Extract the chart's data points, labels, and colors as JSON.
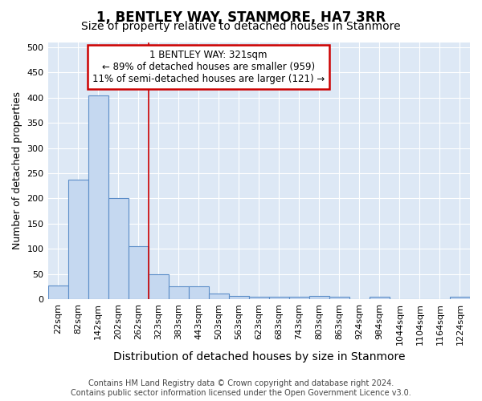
{
  "title": "1, BENTLEY WAY, STANMORE, HA7 3RR",
  "subtitle": "Size of property relative to detached houses in Stanmore",
  "xlabel": "Distribution of detached houses by size in Stanmore",
  "ylabel": "Number of detached properties",
  "categories": [
    "22sqm",
    "82sqm",
    "142sqm",
    "202sqm",
    "262sqm",
    "323sqm",
    "383sqm",
    "443sqm",
    "503sqm",
    "563sqm",
    "623sqm",
    "683sqm",
    "743sqm",
    "803sqm",
    "863sqm",
    "924sqm",
    "984sqm",
    "1044sqm",
    "1104sqm",
    "1164sqm",
    "1224sqm"
  ],
  "values": [
    27,
    237,
    405,
    200,
    106,
    49,
    25,
    25,
    11,
    7,
    5,
    5,
    5,
    7,
    5,
    0,
    5,
    0,
    0,
    0,
    5
  ],
  "bar_color": "#c5d8f0",
  "bar_edge_color": "#5b8dc8",
  "vline_color": "#cc0000",
  "vline_x": 5,
  "annotation_text": "1 BENTLEY WAY: 321sqm\n← 89% of detached houses are smaller (959)\n11% of semi-detached houses are larger (121) →",
  "annotation_box_color": "#ffffff",
  "annotation_box_edge_color": "#cc0000",
  "ylim": [
    0,
    510
  ],
  "yticks": [
    0,
    50,
    100,
    150,
    200,
    250,
    300,
    350,
    400,
    450,
    500
  ],
  "background_color": "#dde8f5",
  "grid_color": "#ffffff",
  "fig_background": "#ffffff",
  "footer_line1": "Contains HM Land Registry data © Crown copyright and database right 2024.",
  "footer_line2": "Contains public sector information licensed under the Open Government Licence v3.0.",
  "title_fontsize": 12,
  "subtitle_fontsize": 10,
  "xlabel_fontsize": 10,
  "ylabel_fontsize": 9,
  "tick_fontsize": 8,
  "annotation_fontsize": 8.5,
  "footer_fontsize": 7
}
